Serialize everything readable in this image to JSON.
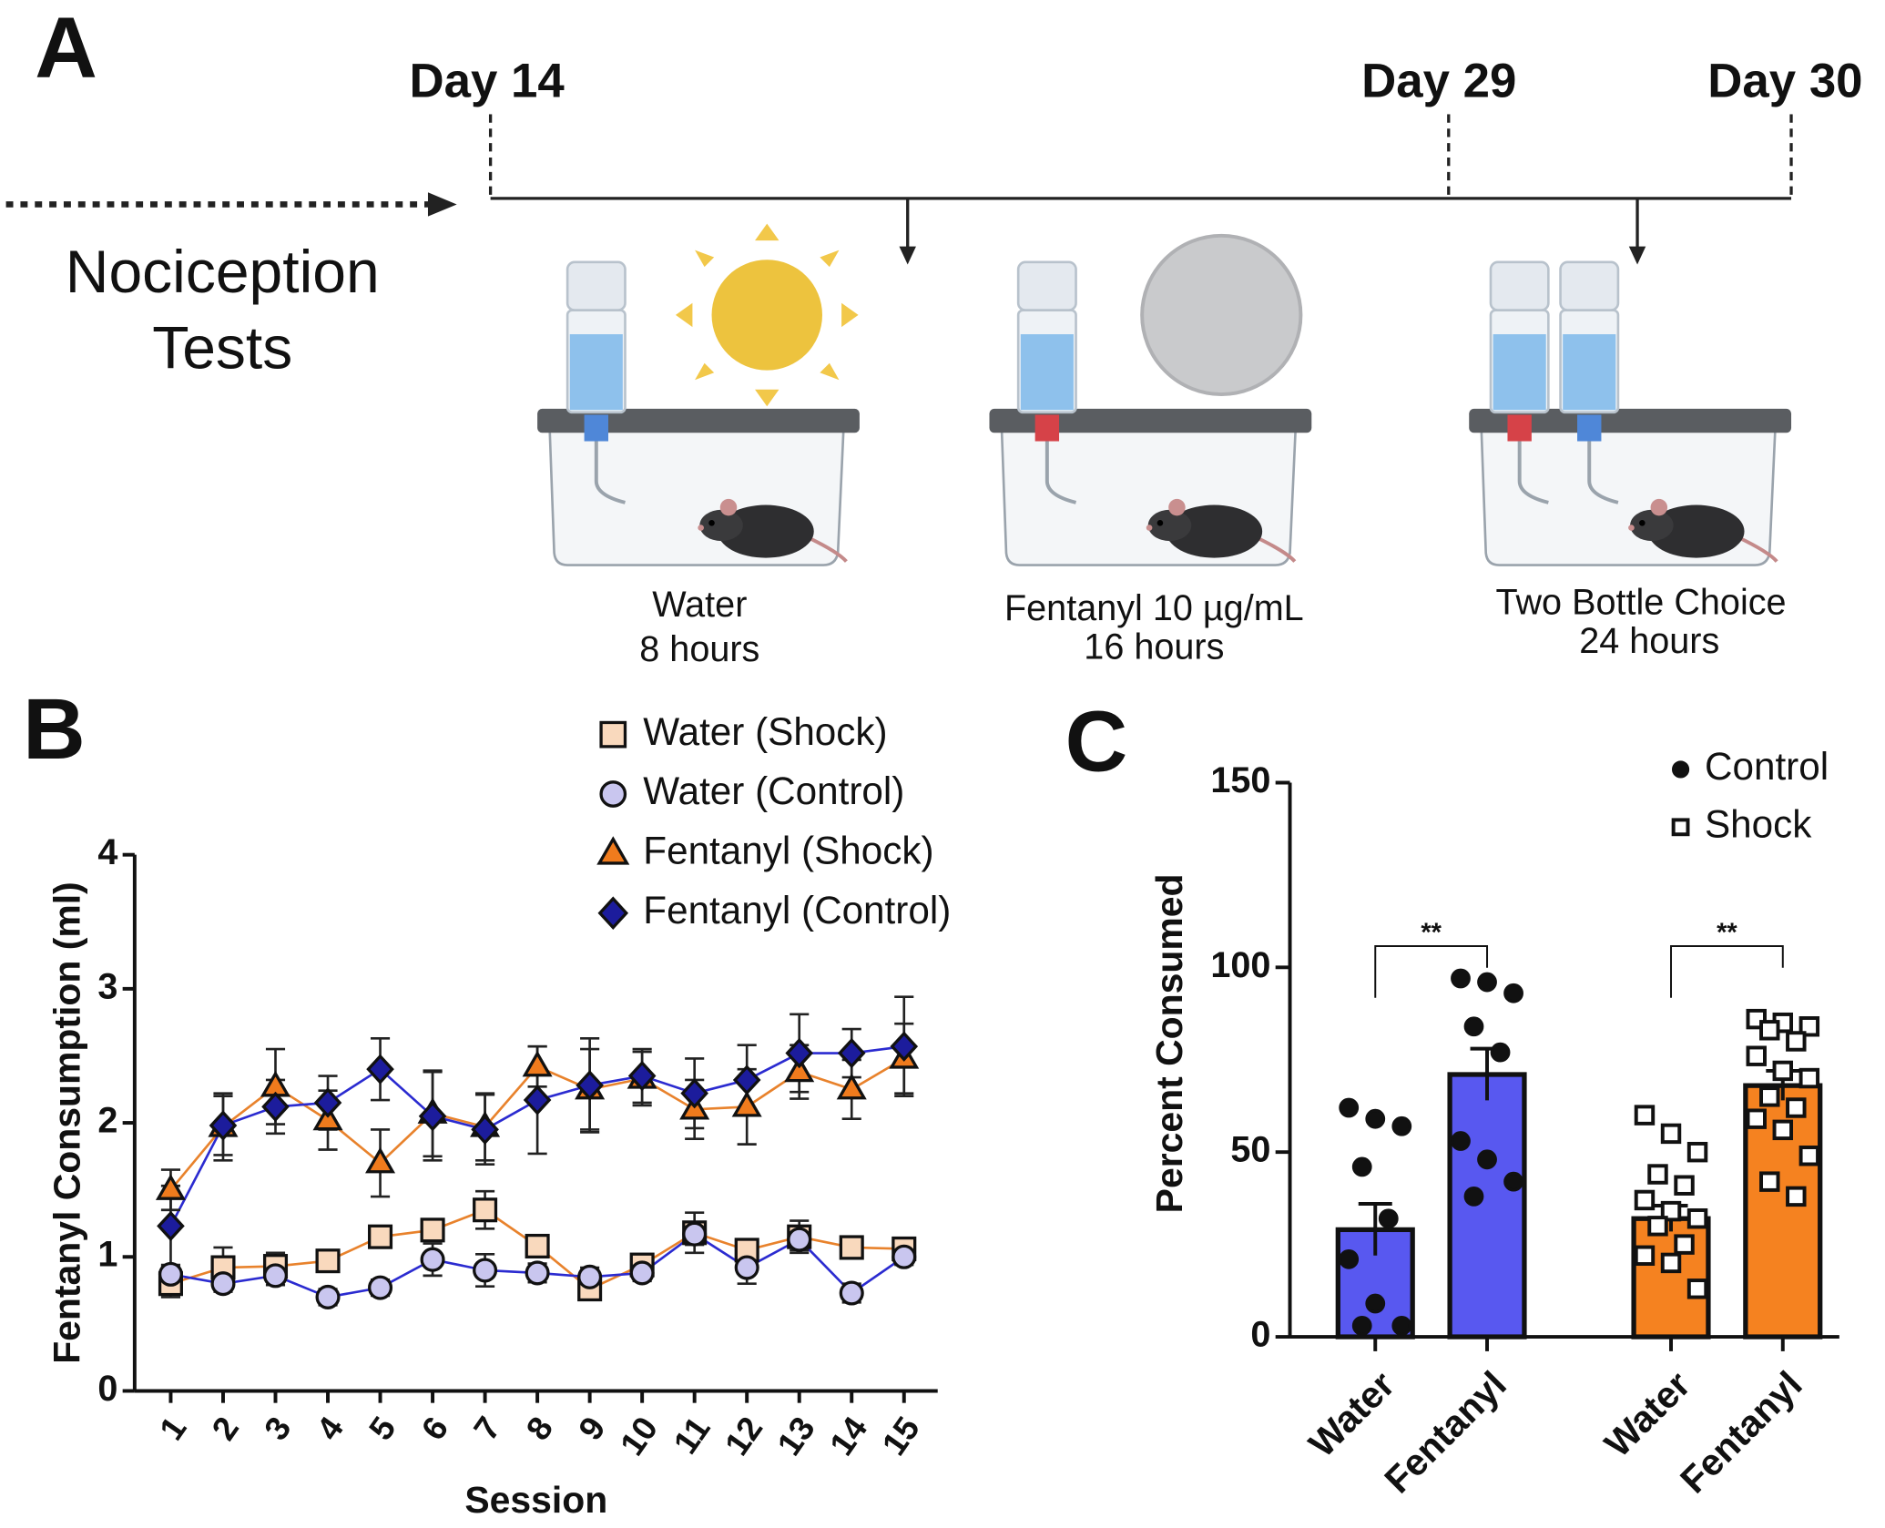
{
  "panel_a": {
    "label": "A",
    "days": [
      "Day 14",
      "Day 29",
      "Day 30"
    ],
    "left_text": [
      "Nociception",
      "Tests"
    ],
    "stages": [
      {
        "lines": [
          "Water",
          "8 hours"
        ]
      },
      {
        "lines": [
          "Fentanyl 10 µg/mL",
          "16 hours"
        ]
      },
      {
        "lines": [
          "Two Bottle Choice",
          "24 hours"
        ]
      }
    ]
  },
  "chart_data": [
    {
      "type": "line",
      "panel": "B",
      "x_label": "Session",
      "y_label": "Fentanyl Consumption (ml)",
      "categories": [
        "1",
        "2",
        "3",
        "4",
        "5",
        "6",
        "7",
        "8",
        "9",
        "10",
        "11",
        "12",
        "13",
        "14",
        "15"
      ],
      "ylim": [
        0,
        4
      ],
      "yticks": [
        0,
        1,
        2,
        3,
        4
      ],
      "grid": false,
      "series": [
        {
          "name": "Water (Shock)",
          "color": "#f9d9bd",
          "line_color": "#e8822c",
          "marker": "square",
          "values": [
            0.8,
            0.92,
            0.93,
            0.97,
            1.15,
            1.2,
            1.35,
            1.08,
            0.76,
            0.94,
            1.18,
            1.05,
            1.15,
            1.07,
            1.06
          ],
          "errors": [
            0.1,
            0.15,
            0.1,
            0.05,
            0.08,
            0.08,
            0.14,
            0.08,
            0.07,
            0.06,
            0.15,
            0.08,
            0.12,
            0.08,
            0.06
          ]
        },
        {
          "name": "Water (Control)",
          "color": "#c9c6ef",
          "line_color": "#2b2bd0",
          "marker": "circle",
          "values": [
            0.87,
            0.8,
            0.86,
            0.7,
            0.77,
            0.98,
            0.9,
            0.88,
            0.85,
            0.88,
            1.17,
            0.92,
            1.13,
            0.73,
            1.0
          ],
          "errors": [
            0.07,
            0.06,
            0.07,
            0.06,
            0.06,
            0.12,
            0.12,
            0.07,
            0.07,
            0.06,
            0.08,
            0.12,
            0.08,
            0.07,
            0.06
          ]
        },
        {
          "name": "Fentanyl (Shock)",
          "color": "#f07b1d",
          "line_color": "#e8822c",
          "marker": "triangle",
          "values": [
            1.5,
            1.97,
            2.27,
            2.02,
            1.7,
            2.07,
            1.97,
            2.42,
            2.25,
            2.33,
            2.1,
            2.12,
            2.38,
            2.25,
            2.48
          ],
          "errors": [
            0.15,
            0.25,
            0.28,
            0.22,
            0.25,
            0.32,
            0.25,
            0.15,
            0.3,
            0.2,
            0.22,
            0.28,
            0.2,
            0.22,
            0.26
          ]
        },
        {
          "name": "Fentanyl (Control)",
          "color": "#1c1c9c",
          "line_color": "#2b2bd0",
          "marker": "diamond",
          "values": [
            1.23,
            1.98,
            2.12,
            2.15,
            2.4,
            2.05,
            1.95,
            2.17,
            2.28,
            2.35,
            2.22,
            2.32,
            2.52,
            2.52,
            2.57
          ],
          "errors": [
            0.3,
            0.22,
            0.2,
            0.2,
            0.23,
            0.33,
            0.26,
            0.4,
            0.35,
            0.2,
            0.26,
            0.26,
            0.29,
            0.18,
            0.37
          ]
        }
      ]
    },
    {
      "type": "bar",
      "panel": "C",
      "y_label": "Percent Consumed",
      "categories": [
        "Water",
        "Fentanyl",
        "Water",
        "Fentanyl"
      ],
      "ylim": [
        0,
        150
      ],
      "yticks": [
        0,
        50,
        100,
        150
      ],
      "grid": false,
      "significance": [
        "**",
        "**"
      ],
      "series": [
        {
          "name": "Control",
          "color": "#5858f0",
          "marker": "dot",
          "values": [
            29,
            71,
            null,
            null
          ],
          "errors": [
            7,
            7,
            null,
            null
          ],
          "points": [
            [
              62,
              59,
              57,
              46,
              32,
              21,
              9,
              3,
              3
            ],
            [
              97,
              96,
              93,
              84,
              77,
              53,
              48,
              42,
              38
            ],
            null,
            null
          ]
        },
        {
          "name": "Shock",
          "color": "#f58220",
          "marker": "open-square",
          "values": [
            null,
            null,
            32,
            68
          ],
          "errors": [
            null,
            null,
            3.5,
            4
          ],
          "points": [
            null,
            null,
            [
              60,
              55,
              50,
              44,
              41,
              37,
              34,
              32,
              30,
              25,
              22,
              20,
              13
            ],
            [
              86,
              85,
              84,
              83,
              80,
              76,
              72,
              70,
              65,
              62,
              59,
              56,
              49,
              42,
              38
            ]
          ]
        }
      ]
    }
  ]
}
